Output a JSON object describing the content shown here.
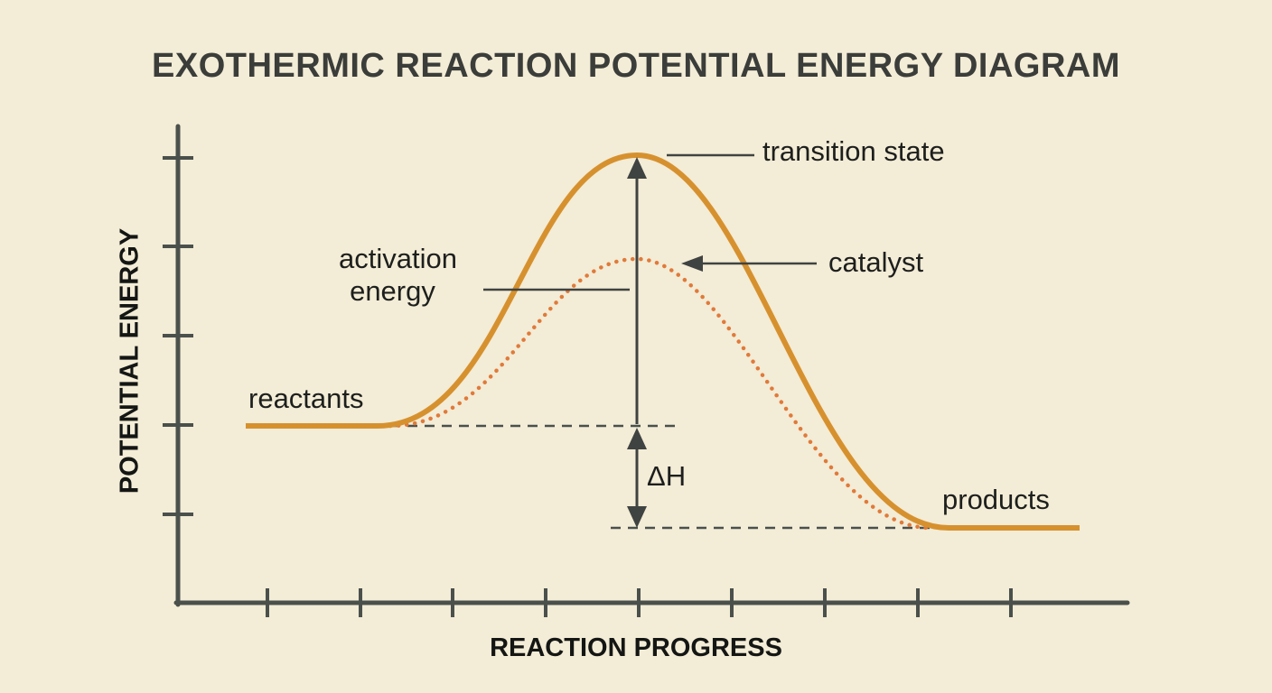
{
  "title": "EXOTHERMIC REACTION POTENTIAL ENERGY DIAGRAM",
  "axes": {
    "y_label": "POTENTIAL ENERGY",
    "x_label": "REACTION PROGRESS"
  },
  "labels": {
    "transition_state": "transition state",
    "activation_energy_line1": "activation",
    "activation_energy_line2": "energy",
    "catalyst": "catalyst",
    "reactants": "reactants",
    "products": "products",
    "delta_h": "ΔH"
  },
  "colors": {
    "background": "#f3ecd6",
    "uncatalyzed_curve": "#d6912e",
    "catalyzed_curve": "#e07a3a",
    "axes": "#4a504c",
    "annotations": "#3f4341"
  }
}
